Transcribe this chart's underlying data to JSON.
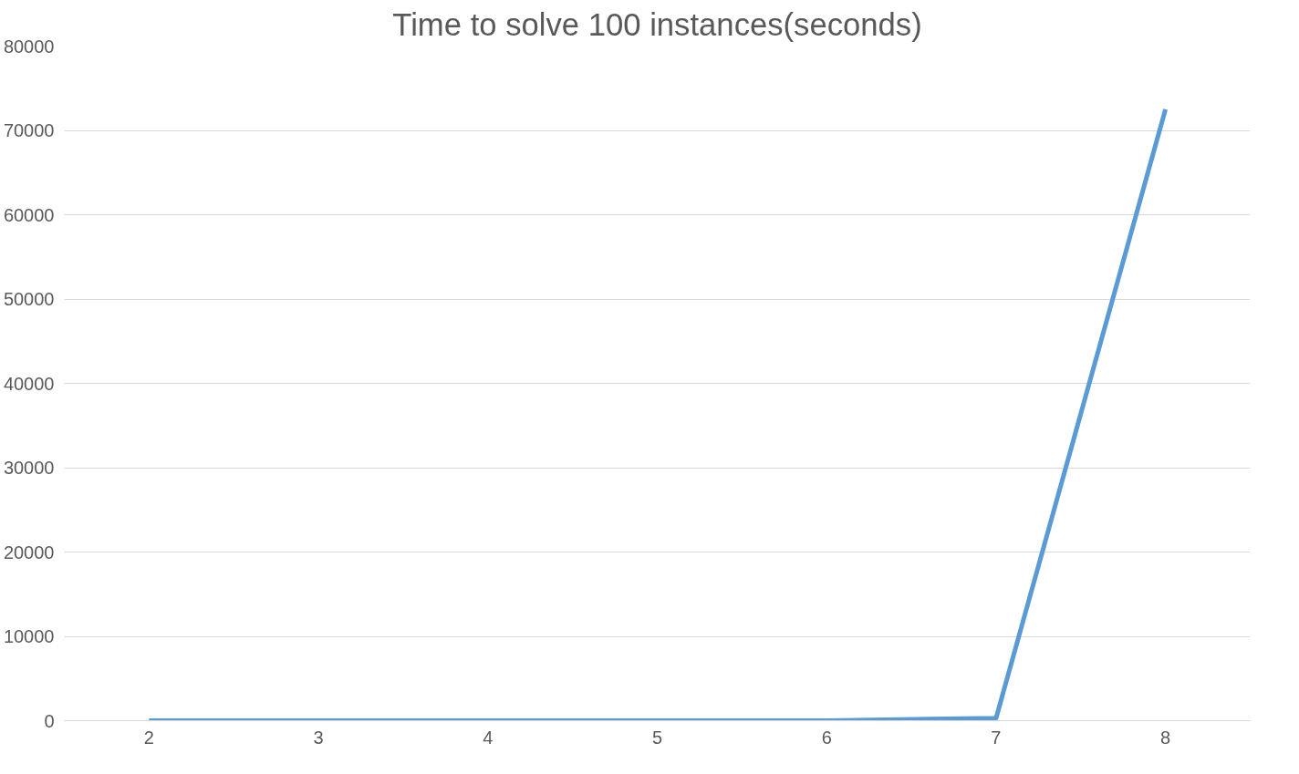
{
  "chart_data": {
    "type": "line",
    "title": "Time to solve 100 instances(seconds)",
    "categories": [
      "2",
      "3",
      "4",
      "5",
      "6",
      "7",
      "8"
    ],
    "series": [
      {
        "color": "#5b9bd5",
        "values": [
          0,
          0,
          0,
          0,
          0,
          300,
          72500
        ]
      }
    ],
    "ylim": [
      0,
      80000
    ],
    "yticks": [
      0,
      10000,
      20000,
      30000,
      40000,
      50000,
      60000,
      70000,
      80000
    ],
    "grid": "y",
    "marker": "none",
    "line_style": "solid"
  }
}
